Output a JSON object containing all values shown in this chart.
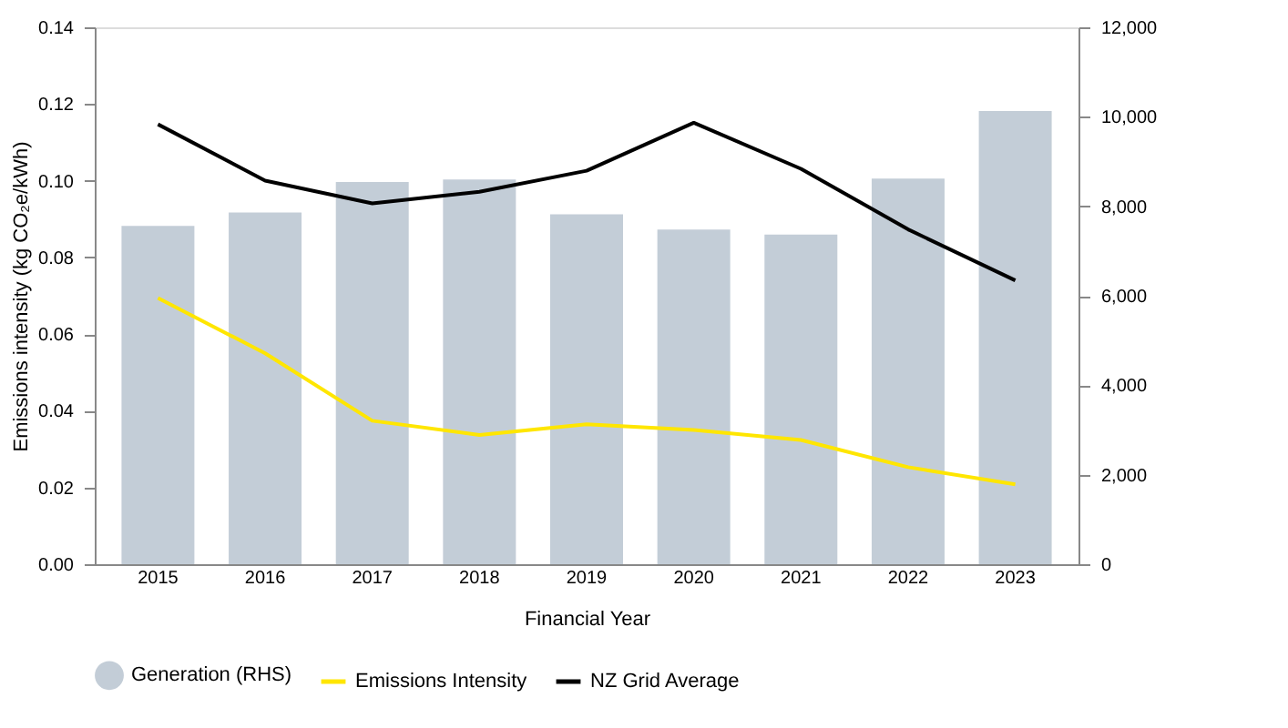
{
  "chart_data": {
    "type": "bar",
    "xlabel": "Financial Year",
    "ylabel": "Emissions intensity (kg CO₂e/kWh)",
    "categories": [
      "2015",
      "2016",
      "2017",
      "2018",
      "2019",
      "2020",
      "2021",
      "2022",
      "2023"
    ],
    "series": [
      {
        "name": "Generation (RHS)",
        "axis": "y2",
        "color": "#c3cdd7",
        "values": [
          7560,
          7860,
          8540,
          8600,
          7820,
          7480,
          7370,
          8620,
          10130
        ]
      },
      {
        "name": "Emissions Intensity",
        "type": "line",
        "color": "#ffe600",
        "values": [
          0.0694,
          0.055,
          0.0374,
          0.0337,
          0.0365,
          0.035,
          0.0324,
          0.0253,
          0.0208
        ]
      },
      {
        "name": "NZ Grid Average",
        "type": "line",
        "color": "#000000",
        "values": [
          0.1147,
          0.1,
          0.0941,
          0.0971,
          0.1026,
          0.1151,
          0.1031,
          0.0873,
          0.074
        ]
      }
    ],
    "ylim": [
      0,
      0.14
    ],
    "yticks": [
      {
        "value": 0,
        "label": "0.00"
      },
      {
        "value": 0.02,
        "label": "0.02"
      },
      {
        "value": 0.04,
        "label": "0.04"
      },
      {
        "value": 0.06,
        "label": "0.06"
      },
      {
        "value": 0.08,
        "label": "0.08"
      },
      {
        "value": 0.1,
        "label": "0.10"
      },
      {
        "value": 0.12,
        "label": "0.12"
      },
      {
        "value": 0.14,
        "label": "0.14"
      }
    ],
    "y2lim": [
      0,
      12000
    ],
    "y2ticks": [
      {
        "value": 0,
        "label": "0"
      },
      {
        "value": 2000,
        "label": "2,000"
      },
      {
        "value": 4000,
        "label": "4,000"
      },
      {
        "value": 6000,
        "label": "6,000"
      },
      {
        "value": 8000,
        "label": "8,000"
      },
      {
        "value": 10000,
        "label": "10,000"
      },
      {
        "value": 12000,
        "label": "12,000"
      }
    ],
    "grid": false,
    "legend": "bottom",
    "marker": "none",
    "line_style": "solid"
  }
}
